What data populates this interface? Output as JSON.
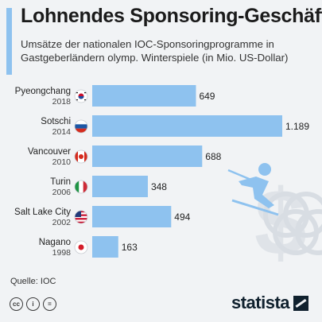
{
  "title": "Lohnendes Sponsoring-Geschäft",
  "subtitle": "Umsätze der nationalen IOC-Sponsoringprogramme in Gastgeberländern olymp. Winterspiele (in Mio. US-Dollar)",
  "source": "Quelle: IOC",
  "logo": "statista",
  "cc_icons": [
    "cc",
    "by",
    "nd"
  ],
  "colors": {
    "bar": "#8ec2ef",
    "title_bar": "#8ec2ef",
    "background": "#f1f3f5"
  },
  "chart_data": {
    "type": "bar",
    "orientation": "horizontal",
    "categories": [
      "Pyeongchang",
      "Sotschi",
      "Vancouver",
      "Turin",
      "Salt Lake City",
      "Nagano"
    ],
    "years": [
      "2018",
      "2014",
      "2010",
      "2006",
      "2002",
      "1998"
    ],
    "flags": [
      "south-korea",
      "russia",
      "canada",
      "italy",
      "usa",
      "japan"
    ],
    "values": [
      649,
      1189,
      688,
      348,
      494,
      163
    ],
    "value_labels": [
      "649",
      "1.189",
      "688",
      "348",
      "494",
      "163"
    ],
    "xlim": [
      0,
      1189
    ]
  }
}
